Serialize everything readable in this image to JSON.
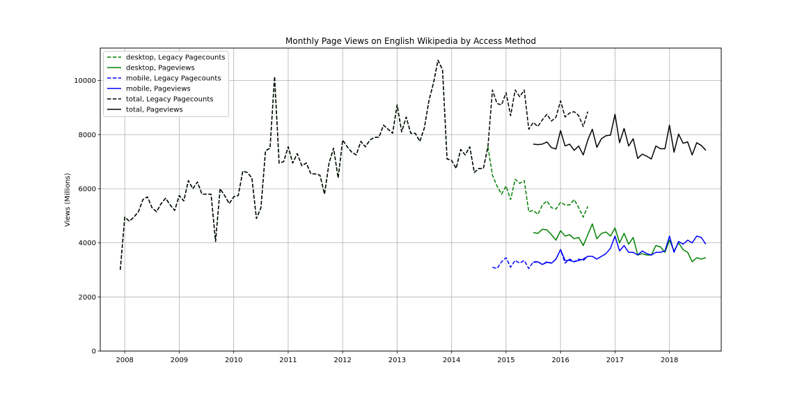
{
  "chart_data": {
    "type": "line",
    "title": "Monthly Page Views on English Wikipedia by Access Method",
    "xlabel": "",
    "ylabel": "Views (Millions)",
    "xlim": [
      2007.55,
      2018.95
    ],
    "ylim": [
      0,
      11200
    ],
    "x_ticks": [
      2008,
      2009,
      2010,
      2011,
      2012,
      2013,
      2014,
      2015,
      2016,
      2017,
      2018
    ],
    "y_ticks": [
      0,
      2000,
      4000,
      6000,
      8000,
      10000
    ],
    "grid": true,
    "legend_position": "top-left",
    "series": [
      {
        "name": "desktop, Legacy Pagecounts",
        "color": "#008000",
        "style": "dashed",
        "start": 2007.917,
        "step": 0.08333,
        "values": [
          3000,
          4950,
          4800,
          4950,
          5150,
          5600,
          5700,
          5300,
          5150,
          5450,
          5650,
          5400,
          5200,
          5750,
          5550,
          6300,
          6000,
          6250,
          5800,
          5800,
          5800,
          4050,
          6000,
          5750,
          5450,
          5700,
          5750,
          6650,
          6600,
          6400,
          4900,
          5300,
          7400,
          7500,
          10150,
          6950,
          7000,
          7550,
          6950,
          7300,
          6850,
          6950,
          6550,
          6550,
          6500,
          5800,
          6950,
          7500,
          6400,
          7800,
          7550,
          7350,
          7250,
          7750,
          7550,
          7800,
          7900,
          7900,
          8350,
          8200,
          8050,
          9100,
          8100,
          8650,
          8050,
          8050,
          7750,
          8250,
          9250,
          9900,
          10750,
          10400,
          7100,
          7050,
          6750,
          7450,
          7250,
          7550,
          6600,
          6750,
          6750,
          7550,
          6500,
          6100,
          5800,
          6100,
          5600,
          6350,
          6200,
          6300,
          5150,
          5200,
          5050,
          5400,
          5550,
          5300,
          5250,
          5500,
          5400,
          5400,
          5600,
          5300,
          4950,
          5350
        ]
      },
      {
        "name": "desktop, Pageviews",
        "color": "#008000",
        "style": "solid",
        "start": 2015.5,
        "step": 0.08333,
        "values": [
          4380,
          4350,
          4500,
          4480,
          4300,
          4100,
          4450,
          4250,
          4300,
          4150,
          4200,
          3900,
          4300,
          4700,
          4150,
          4350,
          4400,
          4250,
          4550,
          4000,
          4350,
          3950,
          4200,
          3550,
          3600,
          3550,
          3550,
          3900,
          3850,
          3650,
          4100,
          3700,
          4000,
          3750,
          3650,
          3300,
          3450,
          3400,
          3450
        ]
      },
      {
        "name": "mobile, Legacy Pagecounts",
        "color": "#0000ff",
        "style": "dashed",
        "start": 2014.75,
        "step": 0.08333,
        "values": [
          3100,
          3050,
          3300,
          3450,
          3100,
          3350,
          3250,
          3350,
          3050,
          3300,
          3300,
          3200,
          3300,
          3250,
          3400,
          3750,
          3250,
          3400,
          3300,
          3400,
          3350,
          3500
        ]
      },
      {
        "name": "mobile, Pageviews",
        "color": "#0000ff",
        "style": "solid",
        "start": 2015.5,
        "step": 0.08333,
        "values": [
          3280,
          3300,
          3200,
          3280,
          3250,
          3400,
          3750,
          3350,
          3350,
          3300,
          3350,
          3400,
          3500,
          3500,
          3400,
          3500,
          3600,
          3800,
          4250,
          3700,
          3900,
          3650,
          3650,
          3550,
          3700,
          3600,
          3550,
          3650,
          3650,
          3700,
          4250,
          3650,
          4050,
          3950,
          4100,
          4000,
          4250,
          4200,
          3950
        ]
      },
      {
        "name": "total, Legacy Pagecounts",
        "color": "#000000",
        "style": "dashed",
        "start": 2007.917,
        "step": 0.08333,
        "values": [
          3000,
          4950,
          4800,
          4950,
          5150,
          5600,
          5700,
          5300,
          5150,
          5450,
          5650,
          5400,
          5200,
          5750,
          5550,
          6300,
          6000,
          6250,
          5800,
          5800,
          5800,
          4050,
          6000,
          5750,
          5450,
          5700,
          5750,
          6650,
          6600,
          6400,
          4900,
          5300,
          7400,
          7500,
          10150,
          6950,
          7000,
          7550,
          6950,
          7300,
          6850,
          6950,
          6550,
          6550,
          6500,
          5800,
          6950,
          7500,
          6400,
          7800,
          7550,
          7350,
          7250,
          7750,
          7550,
          7800,
          7900,
          7900,
          8350,
          8200,
          8050,
          9100,
          8100,
          8650,
          8050,
          8050,
          7750,
          8250,
          9250,
          9900,
          10750,
          10400,
          7100,
          7050,
          6750,
          7450,
          7250,
          7550,
          6600,
          6750,
          6750,
          7550,
          9650,
          9150,
          9100,
          9550,
          8700,
          9650,
          9400,
          9650,
          8200,
          8450,
          8300,
          8550,
          8750,
          8500,
          8650,
          9250,
          8650,
          8800,
          8850,
          8700,
          8300,
          8850
        ]
      },
      {
        "name": "total, Pageviews",
        "color": "#000000",
        "style": "solid",
        "start": 2015.5,
        "step": 0.08333,
        "values": [
          7650,
          7630,
          7650,
          7730,
          7520,
          7470,
          8150,
          7580,
          7650,
          7420,
          7580,
          7250,
          7800,
          8200,
          7530,
          7850,
          7960,
          7980,
          8750,
          7700,
          8230,
          7580,
          7850,
          7120,
          7280,
          7200,
          7100,
          7580,
          7480,
          7480,
          8350,
          7350,
          8020,
          7680,
          7730,
          7250,
          7700,
          7600,
          7420
        ]
      }
    ]
  }
}
